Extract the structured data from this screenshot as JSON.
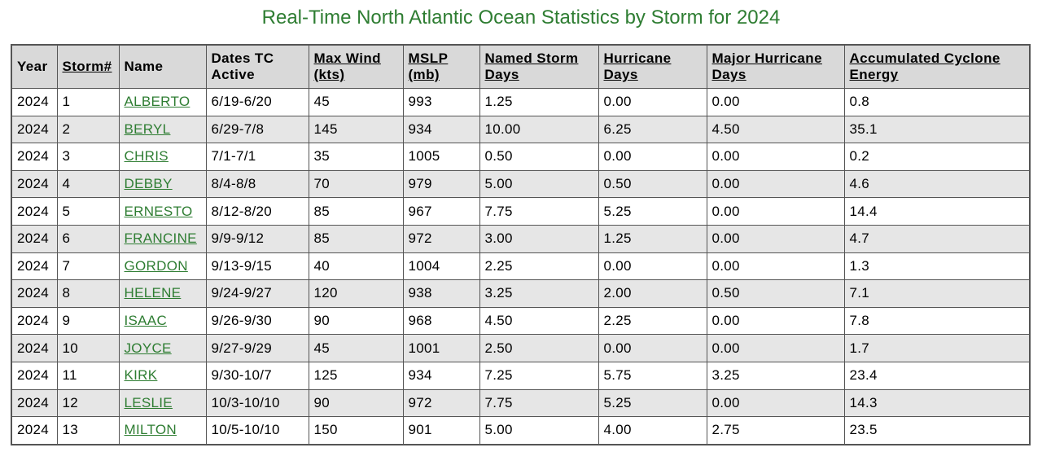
{
  "page": {
    "title": "Real-Time North Atlantic Ocean Statistics by Storm for 2024"
  },
  "colors": {
    "title": "#2e7d32",
    "link": "#2e7d32",
    "header_bg": "#d9d9d9",
    "alt_row_bg": "#e6e6e6",
    "border": "#555555"
  },
  "table": {
    "columns": [
      {
        "label": "Year",
        "sortable": false
      },
      {
        "label": "Storm#",
        "sortable": true
      },
      {
        "label": "Name",
        "sortable": false
      },
      {
        "label": "Dates TC Active",
        "sortable": false
      },
      {
        "label": "Max Wind (kts)",
        "sortable": true
      },
      {
        "label": "MSLP (mb)",
        "sortable": true
      },
      {
        "label": "Named Storm Days",
        "sortable": true
      },
      {
        "label": "Hurricane Days",
        "sortable": true
      },
      {
        "label": "Major Hurricane Days",
        "sortable": true
      },
      {
        "label": "Accumulated Cyclone Energy",
        "sortable": true
      }
    ],
    "rows": [
      [
        "2024",
        "1",
        "ALBERTO",
        "6/19-6/20",
        "45",
        "993",
        "1.25",
        "0.00",
        "0.00",
        "0.8"
      ],
      [
        "2024",
        "2",
        "BERYL",
        "6/29-7/8",
        "145",
        "934",
        "10.00",
        "6.25",
        "4.50",
        "35.1"
      ],
      [
        "2024",
        "3",
        "CHRIS",
        "7/1-7/1",
        "35",
        "1005",
        "0.50",
        "0.00",
        "0.00",
        "0.2"
      ],
      [
        "2024",
        "4",
        "DEBBY",
        "8/4-8/8",
        "70",
        "979",
        "5.00",
        "0.50",
        "0.00",
        "4.6"
      ],
      [
        "2024",
        "5",
        "ERNESTO",
        "8/12-8/20",
        "85",
        "967",
        "7.75",
        "5.25",
        "0.00",
        "14.4"
      ],
      [
        "2024",
        "6",
        "FRANCINE",
        "9/9-9/12",
        "85",
        "972",
        "3.00",
        "1.25",
        "0.00",
        "4.7"
      ],
      [
        "2024",
        "7",
        "GORDON",
        "9/13-9/15",
        "40",
        "1004",
        "2.25",
        "0.00",
        "0.00",
        "1.3"
      ],
      [
        "2024",
        "8",
        "HELENE",
        "9/24-9/27",
        "120",
        "938",
        "3.25",
        "2.00",
        "0.50",
        "7.1"
      ],
      [
        "2024",
        "9",
        "ISAAC",
        "9/26-9/30",
        "90",
        "968",
        "4.50",
        "2.25",
        "0.00",
        "7.8"
      ],
      [
        "2024",
        "10",
        "JOYCE",
        "9/27-9/29",
        "45",
        "1001",
        "2.50",
        "0.00",
        "0.00",
        "1.7"
      ],
      [
        "2024",
        "11",
        "KIRK",
        "9/30-10/7",
        "125",
        "934",
        "7.25",
        "5.75",
        "3.25",
        "23.4"
      ],
      [
        "2024",
        "12",
        "LESLIE",
        "10/3-10/10",
        "90",
        "972",
        "7.75",
        "5.25",
        "0.00",
        "14.3"
      ],
      [
        "2024",
        "13",
        "MILTON",
        "10/5-10/10",
        "150",
        "901",
        "5.00",
        "4.00",
        "2.75",
        "23.5"
      ]
    ]
  }
}
